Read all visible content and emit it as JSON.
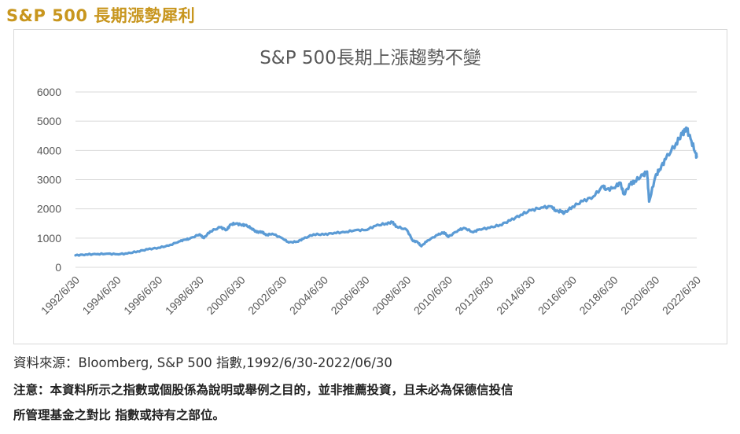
{
  "page": {
    "heading": "S&P 500 長期漲勢犀利",
    "source": "資料來源：Bloomberg, S&P 500 指數,1992/6/30-2022/06/30",
    "note_line1": "注意：本資料所示之指數或個股係為說明或舉例之目的，並非推薦投資，且未必為保德信投信",
    "note_line2": "所管理基金之對比  指數或持有之部位。"
  },
  "colors": {
    "heading": "#c8961e",
    "line": "#5b9bd5",
    "grid": "#d9d9d9",
    "text": "#595959"
  },
  "chart_data": {
    "type": "line",
    "title": "S&P 500長期上漲趨勢不變",
    "xlabel": "",
    "ylabel": "",
    "ylim": [
      0,
      6000
    ],
    "yticks": [
      "0",
      "1000",
      "2000",
      "3000",
      "4000",
      "5000",
      "6000"
    ],
    "xticks": [
      "1992/6/30",
      "1994/6/30",
      "1996/6/30",
      "1998/6/30",
      "2000/6/30",
      "2002/6/30",
      "2004/6/30",
      "2006/6/30",
      "2008/6/30",
      "2010/6/30",
      "2012/6/30",
      "2014/6/30",
      "2016/6/30",
      "2018/6/30",
      "2020/6/30",
      "2022/6/30"
    ],
    "grid": true,
    "legend": "none",
    "series": [
      {
        "x": [
          1992.5,
          1993.0,
          1993.5,
          1994.0,
          1994.5,
          1995.0,
          1995.5,
          1996.0,
          1996.5,
          1997.0,
          1997.5,
          1997.8,
          1998.0,
          1998.5,
          1998.7,
          1999.0,
          1999.5,
          1999.8,
          2000.0,
          2000.25,
          2000.5,
          2000.7,
          2001.0,
          2001.25,
          2001.5,
          2001.7,
          2002.0,
          2002.5,
          2002.8,
          2003.2,
          2003.5,
          2004.0,
          2004.5,
          2005.0,
          2005.5,
          2006.0,
          2006.5,
          2007.0,
          2007.5,
          2007.8,
          2008.0,
          2008.5,
          2008.8,
          2009.0,
          2009.2,
          2009.5,
          2010.0,
          2010.3,
          2010.5,
          2011.0,
          2011.3,
          2011.7,
          2012.0,
          2012.5,
          2013.0,
          2013.5,
          2014.0,
          2014.5,
          2015.0,
          2015.5,
          2015.7,
          2016.0,
          2016.1,
          2016.5,
          2017.0,
          2017.5,
          2018.0,
          2018.1,
          2018.5,
          2018.8,
          2018.98,
          2019.3,
          2019.5,
          2019.9,
          2020.1,
          2020.2,
          2020.5,
          2020.7,
          2021.0,
          2021.5,
          2021.8,
          2021.99,
          2022.2,
          2022.45,
          2022.5
        ],
        "values": [
          410,
          440,
          450,
          465,
          450,
          470,
          545,
          615,
          670,
          740,
          885,
          950,
          975,
          1130,
          1000,
          1230,
          1370,
          1280,
          1470,
          1500,
          1455,
          1440,
          1340,
          1200,
          1220,
          1100,
          1150,
          990,
          850,
          880,
          975,
          1130,
          1120,
          1180,
          1200,
          1270,
          1275,
          1420,
          1500,
          1540,
          1400,
          1280,
          900,
          880,
          720,
          920,
          1110,
          1200,
          1040,
          1280,
          1340,
          1200,
          1300,
          1350,
          1450,
          1600,
          1800,
          1950,
          2050,
          2080,
          1920,
          1920,
          1850,
          2080,
          2260,
          2420,
          2790,
          2650,
          2720,
          2900,
          2500,
          2850,
          2950,
          3150,
          3280,
          2250,
          3100,
          3350,
          3700,
          4250,
          4550,
          4780,
          4400,
          3900,
          3780
        ]
      }
    ]
  }
}
